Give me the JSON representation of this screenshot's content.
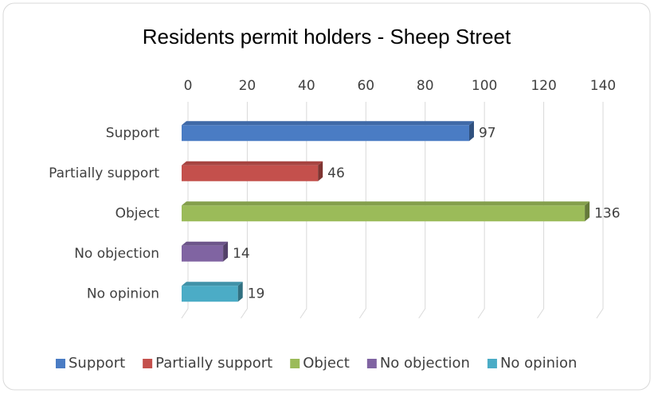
{
  "chart_data": {
    "type": "bar",
    "orientation": "horizontal",
    "title": "Residents permit holders - Sheep Street",
    "categories": [
      "Support",
      "Partially support",
      "Object",
      "No objection",
      "No opinion"
    ],
    "values": [
      97,
      46,
      136,
      14,
      19
    ],
    "colors": [
      "#4a7cc4",
      "#c4504c",
      "#9bbb59",
      "#8064a2",
      "#4bacc6"
    ],
    "xlim": [
      0,
      140
    ],
    "xticks": [
      0,
      20,
      40,
      60,
      80,
      100,
      120,
      140
    ],
    "grid": true,
    "legend": "bottom"
  }
}
